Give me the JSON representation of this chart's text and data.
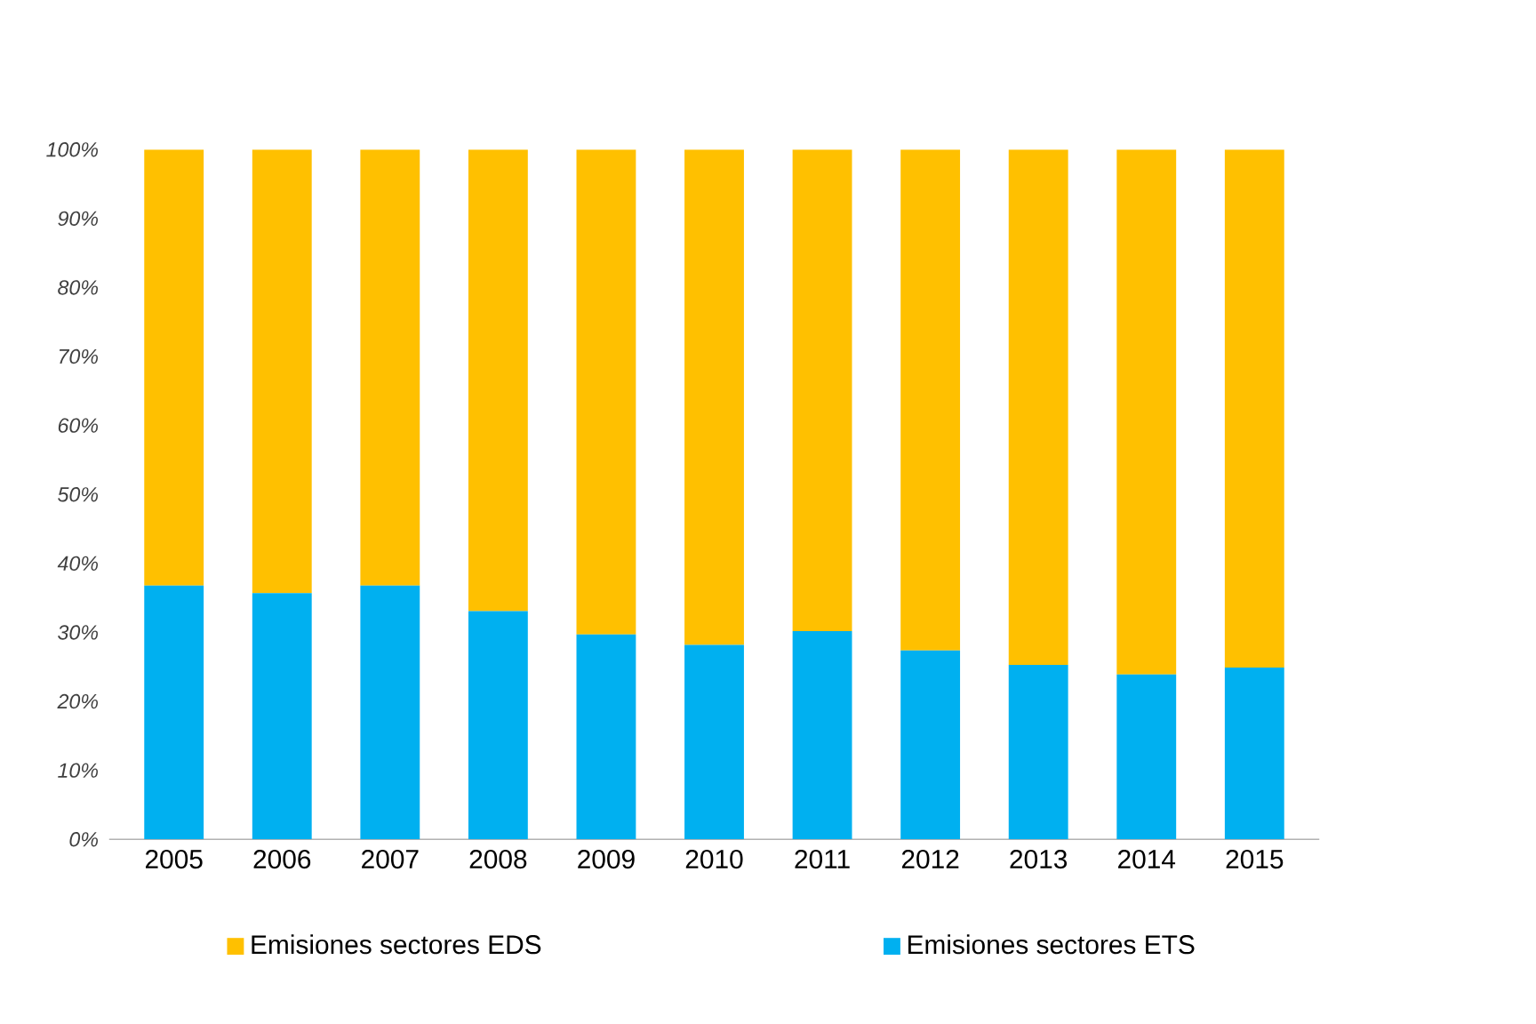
{
  "chart_data": {
    "type": "bar",
    "stacked": true,
    "categories": [
      "2005",
      "2006",
      "2007",
      "2008",
      "2009",
      "2010",
      "2011",
      "2012",
      "2013",
      "2014",
      "2015"
    ],
    "series": [
      {
        "name": "Emisiones sectores ETS",
        "color": "#00b0f0",
        "values": [
          36.8,
          35.7,
          36.8,
          33.1,
          29.7,
          28.2,
          30.2,
          27.4,
          25.3,
          23.9,
          24.9
        ]
      },
      {
        "name": "Emisiones sectores EDS",
        "color": "#ffc000",
        "values": [
          63.2,
          64.3,
          63.2,
          66.9,
          70.3,
          71.8,
          69.8,
          72.6,
          74.7,
          76.1,
          75.1
        ]
      }
    ],
    "ylim": [
      0,
      100
    ],
    "yticks": [
      {
        "value": 0,
        "label": "0%"
      },
      {
        "value": 10,
        "label": "10%"
      },
      {
        "value": 20,
        "label": "20%"
      },
      {
        "value": 30,
        "label": "30%"
      },
      {
        "value": 40,
        "label": "40%"
      },
      {
        "value": 50,
        "label": "50%"
      },
      {
        "value": 60,
        "label": "60%"
      },
      {
        "value": 70,
        "label": "70%"
      },
      {
        "value": 80,
        "label": "80%"
      },
      {
        "value": 90,
        "label": "90%"
      },
      {
        "value": 100,
        "label": "100%"
      }
    ],
    "legend": "bottom",
    "grid": false
  }
}
